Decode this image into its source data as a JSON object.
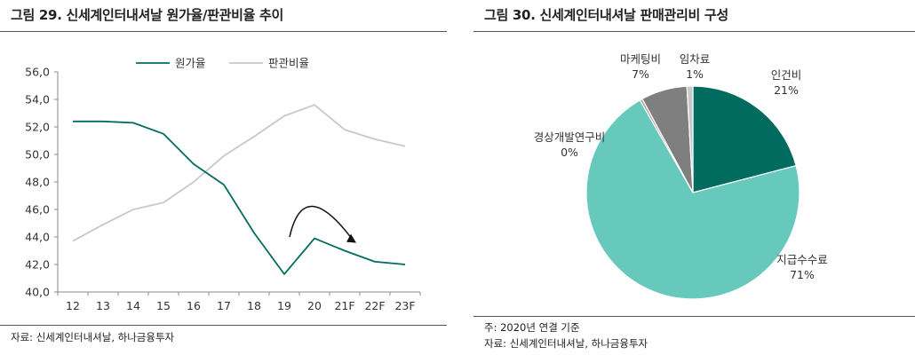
{
  "left": {
    "title": "그림 29. 신세계인터내셔날 원가율/판관비율 추이",
    "source": "자료: 신세계인터내셔날, 하나금융투자"
  },
  "right": {
    "title": "그림 30. 신세계인터내셔날 판매관리비 구성",
    "note": "주: 2020년 연결 기준",
    "source": "자료: 신세계인터내셔날, 하나금융투자"
  },
  "chart_data": [
    {
      "type": "line",
      "categories": [
        "12",
        "13",
        "14",
        "15",
        "16",
        "17",
        "18",
        "19",
        "20",
        "21F",
        "22F",
        "23F"
      ],
      "series": [
        {
          "name": "원가율",
          "color": "#006b5e",
          "values": [
            52.4,
            52.4,
            52.3,
            51.5,
            49.3,
            47.8,
            44.3,
            41.3,
            43.9,
            43.0,
            42.2,
            42.0
          ]
        },
        {
          "name": "판관비율",
          "color": "#c8c8c8",
          "values": [
            43.7,
            44.9,
            46.0,
            46.5,
            48.0,
            49.9,
            51.3,
            52.8,
            53.6,
            51.8,
            51.1,
            50.6
          ]
        }
      ],
      "ylim": [
        40.0,
        56.0
      ],
      "yticks": [
        "40,0",
        "42,0",
        "44,0",
        "46,0",
        "48,0",
        "50,0",
        "52,0",
        "54,0",
        "56,0"
      ],
      "legend_position": "top",
      "annotation": "curved arrow over 20–22F indicating decline"
    },
    {
      "type": "pie",
      "slices": [
        {
          "label": "인건비",
          "pct_label": "21%",
          "value": 21,
          "color": "#006b5e"
        },
        {
          "label": "지급수수료",
          "pct_label": "71%",
          "value": 71,
          "color": "#66c9bb"
        },
        {
          "label": "경상개발연구비",
          "pct_label": "0%",
          "value": 0.4,
          "color": "#a8a8a8"
        },
        {
          "label": "마케팅비",
          "pct_label": "7%",
          "value": 7,
          "color": "#7f7f7f"
        },
        {
          "label": "임차료",
          "pct_label": "1%",
          "value": 0.9,
          "color": "#c8c8c8"
        }
      ]
    }
  ]
}
